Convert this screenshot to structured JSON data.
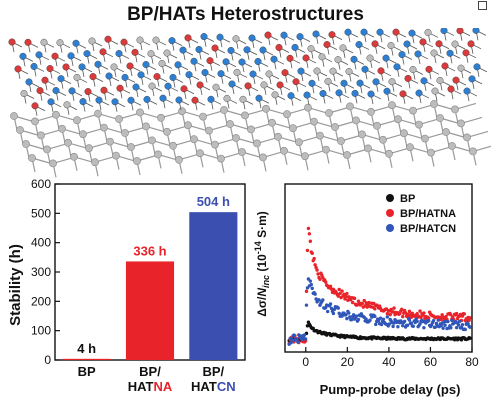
{
  "header": {
    "title": "BP/HATs Heterostructures"
  },
  "colors": {
    "bp": "#111111",
    "hatna": "#e8232a",
    "hatcn": "#2f56b8",
    "atom_red": "#d93a3a",
    "atom_blue": "#2f7fd1",
    "atom_gray": "#bcbcbc"
  },
  "chart_data": [
    {
      "type": "bar",
      "ylabel": "Stability (h)",
      "ylim": [
        0,
        600
      ],
      "yticks": [
        "0",
        "100",
        "200",
        "300",
        "400",
        "500",
        "600"
      ],
      "categories": [
        {
          "line1": "BP",
          "line2_prefix": "",
          "line2_suffix": ""
        },
        {
          "line1": "BP/",
          "line2_prefix": "HAT",
          "line2_suffix": "NA"
        },
        {
          "line1": "BP/",
          "line2_prefix": "HAT",
          "line2_suffix": "CN"
        }
      ],
      "values": [
        4,
        336,
        504
      ],
      "data_labels": [
        "4 h",
        "336 h",
        "504 h"
      ],
      "bar_colors": [
        "#e8232a",
        "#e8232a",
        "#3b4fb0"
      ],
      "label_colors": [
        "#111111",
        "#e8232a",
        "#3b4fb0"
      ]
    },
    {
      "type": "scatter",
      "ylabel_parts": {
        "delta": "Δσ/",
        "n": "N",
        "sub": "inc",
        "unit": " (10",
        "exp": "-14",
        "unit_end": " S·m)"
      },
      "xlabel": "Pump-probe delay (ps)",
      "xlim": [
        -10,
        80
      ],
      "xticks": [
        "0",
        "20",
        "40",
        "60",
        "80"
      ],
      "legend_position": "top-right",
      "series": [
        {
          "name": "BP",
          "color": "#111111",
          "amplitude": 1.6,
          "tau1": 1.8,
          "tau2": 12,
          "frac": 0.55,
          "offset": 0.05,
          "noise": 0.07
        },
        {
          "name": "BP/HATNA",
          "color": "#e8232a",
          "amplitude": 9.0,
          "tau1": 2.5,
          "tau2": 22,
          "frac": 0.55,
          "offset": 1.3,
          "noise": 0.25
        },
        {
          "name": "BP/HATCN",
          "color": "#2f56b8",
          "amplitude": 4.8,
          "tau1": 2.5,
          "tau2": 20,
          "frac": 0.5,
          "offset": 0.9,
          "noise": 0.3
        }
      ]
    }
  ]
}
